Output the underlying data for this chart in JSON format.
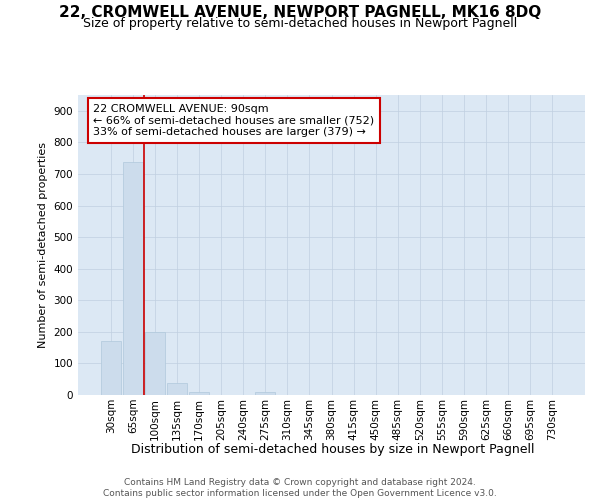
{
  "title": "22, CROMWELL AVENUE, NEWPORT PAGNELL, MK16 8DQ",
  "subtitle": "Size of property relative to semi-detached houses in Newport Pagnell",
  "xlabel": "Distribution of semi-detached houses by size in Newport Pagnell",
  "ylabel": "Number of semi-detached properties",
  "footer_line1": "Contains HM Land Registry data © Crown copyright and database right 2024.",
  "footer_line2": "Contains public sector information licensed under the Open Government Licence v3.0.",
  "annotation_title": "22 CROMWELL AVENUE: 90sqm",
  "annotation_line1": "← 66% of semi-detached houses are smaller (752)",
  "annotation_line2": "33% of semi-detached houses are larger (379) →",
  "categories": [
    "30sqm",
    "65sqm",
    "100sqm",
    "135sqm",
    "170sqm",
    "205sqm",
    "240sqm",
    "275sqm",
    "310sqm",
    "345sqm",
    "380sqm",
    "415sqm",
    "450sqm",
    "485sqm",
    "520sqm",
    "555sqm",
    "590sqm",
    "625sqm",
    "660sqm",
    "695sqm",
    "730sqm"
  ],
  "values": [
    170,
    737,
    200,
    37,
    10,
    0,
    0,
    10,
    0,
    0,
    0,
    0,
    0,
    0,
    0,
    0,
    0,
    0,
    0,
    0,
    0
  ],
  "bar_color": "#ccdcec",
  "bar_edge_color": "#b0c8dc",
  "vline_color": "#cc0000",
  "vline_x": 1.5,
  "annotation_box_edge_color": "#cc0000",
  "annotation_box_fill": "#ffffff",
  "ylim_max": 950,
  "yticks": [
    0,
    100,
    200,
    300,
    400,
    500,
    600,
    700,
    800,
    900
  ],
  "grid_color": "#c0cfe0",
  "background_color": "#ffffff",
  "plot_bg_color": "#dce8f4",
  "title_fontsize": 11,
  "subtitle_fontsize": 9,
  "xlabel_fontsize": 9,
  "ylabel_fontsize": 8,
  "tick_fontsize": 7.5,
  "annotation_fontsize": 8,
  "footer_fontsize": 6.5
}
